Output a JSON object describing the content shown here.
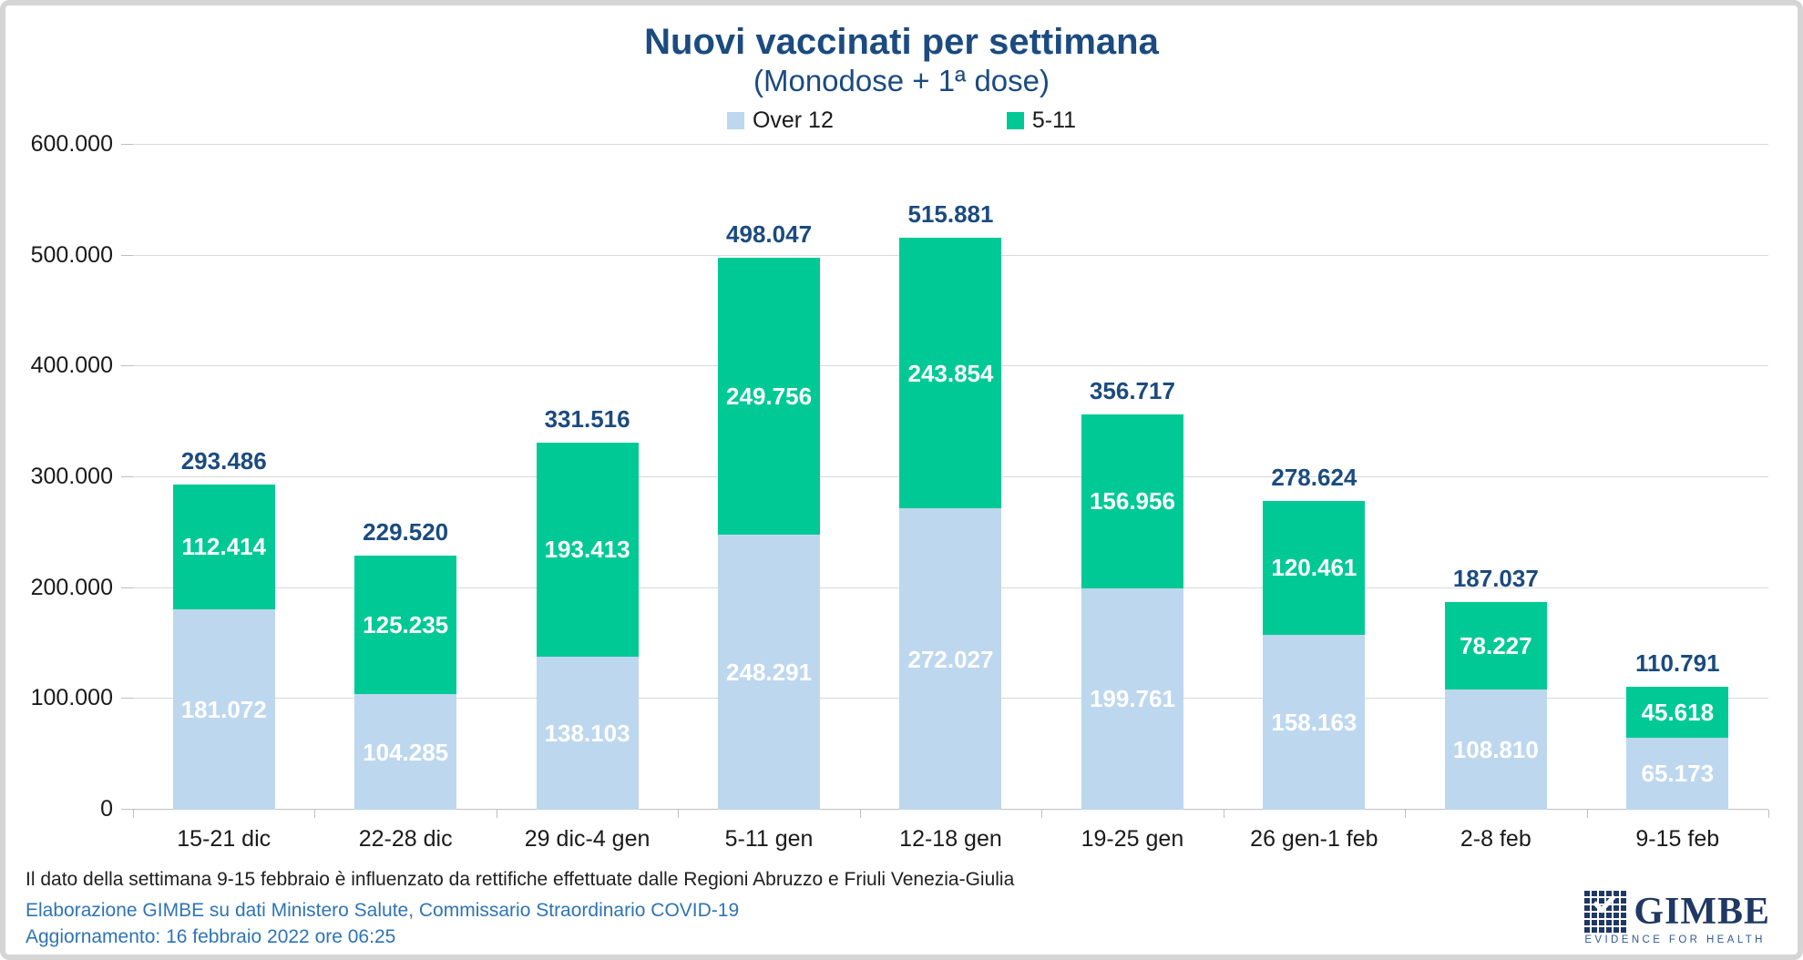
{
  "chart_data": {
    "type": "bar",
    "stacked": true,
    "title": "Nuovi vaccinati per settimana",
    "subtitle": "(Monodose + 1ª dose)",
    "categories": [
      "15-21 dic",
      "22-28 dic",
      "29 dic-4 gen",
      "5-11 gen",
      "12-18 gen",
      "19-25 gen",
      "26 gen-1 feb",
      "2-8 feb",
      "9-15 feb"
    ],
    "series": [
      {
        "name": "Over 12",
        "color": "#bdd7ee",
        "values": [
          181072,
          104285,
          138103,
          248291,
          272027,
          199761,
          158163,
          108810,
          65173
        ],
        "labels": [
          "181.072",
          "104.285",
          "138.103",
          "248.291",
          "272.027",
          "199.761",
          "158.163",
          "108.810",
          "65.173"
        ]
      },
      {
        "name": "5-11",
        "color": "#00c995",
        "values": [
          112414,
          125235,
          193413,
          249756,
          243854,
          156956,
          120461,
          78227,
          45618
        ],
        "labels": [
          "112.414",
          "125.235",
          "193.413",
          "249.756",
          "243.854",
          "156.956",
          "120.461",
          "78.227",
          "45.618"
        ]
      }
    ],
    "totals": [
      293486,
      229520,
      331516,
      498047,
      515881,
      356717,
      278624,
      187037,
      110791
    ],
    "total_labels": [
      "293.486",
      "229.520",
      "331.516",
      "498.047",
      "515.881",
      "356.717",
      "278.624",
      "187.037",
      "110.791"
    ],
    "y_axis": {
      "min": 0,
      "max": 600000,
      "step": 100000,
      "tick_labels": [
        "0",
        "100.000",
        "200.000",
        "300.000",
        "400.000",
        "500.000",
        "600.000"
      ]
    },
    "grid": true,
    "legend_position": "top"
  },
  "footer": {
    "note": "Il dato della settimana 9-15 febbraio è influenzato da rettifiche effettuate dalle Regioni Abruzzo e Friuli Venezia-Giulia",
    "source": "Elaborazione GIMBE su dati Ministero Salute, Commissario Straordinario COVID-19",
    "update": "Aggiornamento: 16 febbraio 2022 ore 06:25"
  },
  "logo": {
    "name": "GIMBE",
    "tagline": "EVIDENCE FOR HEALTH"
  },
  "colors": {
    "title": "#1b4b7f",
    "gridline": "#d9d9d9",
    "axis": "#bfbfbf",
    "note_text": "#1f1f1f",
    "source_text": "#2e74b5",
    "logo_navy": "#1f3864"
  }
}
